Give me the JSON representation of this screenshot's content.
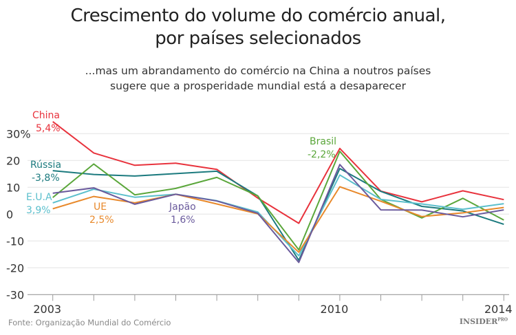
{
  "chart_data": {
    "type": "line",
    "title": "Crescimento do volume do comércio anual, por países selecionados",
    "title_lines": [
      "Crescimento do volume do comércio anual,",
      "por países selecionados"
    ],
    "subtitle_lines": [
      "...mas um abrandamento do comércio na China a noutros países",
      "sugere que a prosperidade mundial está a desaparecer"
    ],
    "x": [
      2003,
      2004,
      2005,
      2006,
      2007,
      2008,
      2009,
      2010,
      2011,
      2012,
      2013,
      2014
    ],
    "x_tick_labels": [
      "2003",
      "2010",
      "2014"
    ],
    "y_ticks": [
      30,
      20,
      10,
      0,
      -10,
      -20,
      -30
    ],
    "y_tick_labels": [
      "30%",
      "20",
      "10",
      "0",
      "-10",
      "-20",
      "-30"
    ],
    "ylim": [
      -30,
      30
    ],
    "grid": true,
    "series": [
      {
        "name": "China",
        "label": "5,4%",
        "color": "#e8323c",
        "values": [
          34.5,
          22.8,
          18.2,
          19.0,
          16.7,
          6.0,
          -3.4,
          24.5,
          8.6,
          4.6,
          8.7,
          5.4
        ]
      },
      {
        "name": "Rússia",
        "label": "-3,8%",
        "color": "#1b7a7e",
        "values": [
          16.2,
          14.8,
          14.2,
          15.1,
          16.0,
          6.8,
          -17.2,
          17.0,
          8.5,
          2.9,
          1.2,
          -3.8
        ]
      },
      {
        "name": "Brasil",
        "label": "-2,2%",
        "color": "#5aa63a",
        "values": [
          6.2,
          18.7,
          7.2,
          9.6,
          13.7,
          6.8,
          -13.3,
          23.4,
          5.5,
          -1.4,
          5.9,
          -2.2
        ]
      },
      {
        "name": "E.U.A",
        "label": "3,9%",
        "color": "#5bbfcc",
        "values": [
          4.2,
          9.3,
          6.3,
          7.4,
          5.0,
          0.8,
          -15.5,
          14.6,
          5.5,
          3.8,
          1.8,
          3.9
        ]
      },
      {
        "name": "UE",
        "label": "2,5%",
        "color": "#e8892b",
        "values": [
          2.0,
          6.6,
          4.2,
          7.4,
          3.8,
          0.1,
          -14.2,
          10.2,
          4.8,
          -0.9,
          0.5,
          2.5
        ]
      },
      {
        "name": "Japão",
        "label": "1,6%",
        "color": "#6a5a9c",
        "values": [
          7.8,
          9.8,
          3.7,
          7.4,
          4.9,
          0.3,
          -18.0,
          18.5,
          1.6,
          1.5,
          -1.0,
          1.6
        ]
      }
    ]
  },
  "footer": {
    "source": "Fonte: Organização Mundial do Comércio",
    "logo": "INSIDER",
    "logo_sup": "PRO"
  }
}
